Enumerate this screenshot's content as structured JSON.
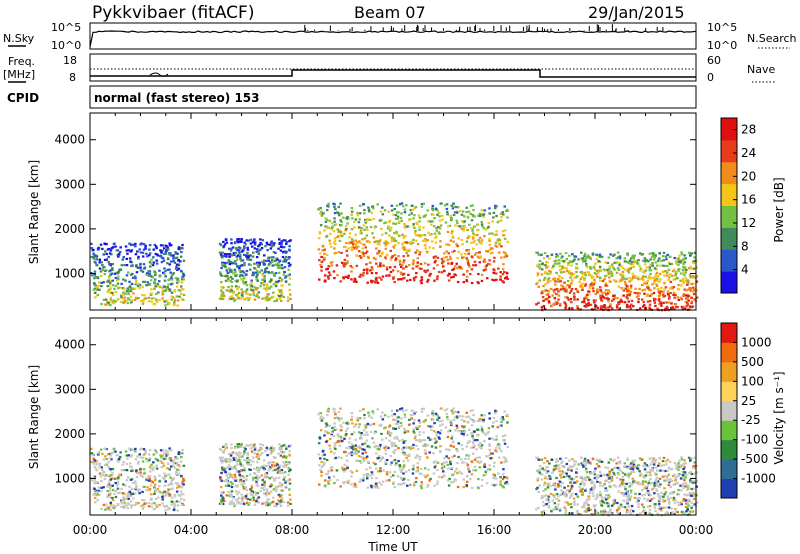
{
  "header": {
    "station": "Pykkvibaer (fitACF)",
    "beam": "Beam 07",
    "date": "29/Jan/2015"
  },
  "labels": {
    "nsky": "N.Sky",
    "nsearch": "N.Search",
    "freq_top": "Freq.",
    "freq_unit": "[MHz]",
    "nave": "Nave",
    "cpid": "CPID",
    "cpid_value": "normal (fast stereo) 153",
    "noise_ticks": [
      "10^5",
      "10^0"
    ],
    "freq_ticks": [
      "18",
      "8"
    ],
    "nave_ticks": [
      "60",
      "0"
    ]
  },
  "chart_data": [
    {
      "type": "heatmap",
      "name": "power",
      "title": "",
      "xlabel": "",
      "ylabel": "Slant Range [km]",
      "x_ticks": [
        "00:00",
        "04:00",
        "08:00",
        "12:00",
        "16:00",
        "20:00",
        "00:00"
      ],
      "y_ticks": [
        "1000",
        "2000",
        "3000",
        "4000"
      ],
      "xlim": [
        0,
        24
      ],
      "ylim": [
        180,
        4600
      ],
      "colorbar": {
        "label": "Power [dB]",
        "ticks": [
          "4",
          "8",
          "12",
          "16",
          "20",
          "24",
          "28"
        ],
        "range": [
          0,
          30
        ],
        "colors": [
          "#1a10e8",
          "#2a58c8",
          "#3f8c5a",
          "#74c043",
          "#f5c51a",
          "#f08d1a",
          "#e63c1a",
          "#e01010"
        ]
      },
      "regions": [
        {
          "t0": 0.0,
          "t1": 3.7,
          "r0": 300,
          "r1": 1700,
          "level": "mixed"
        },
        {
          "t0": 5.1,
          "t1": 7.9,
          "r0": 400,
          "r1": 1800,
          "level": "mixed"
        },
        {
          "t0": 9.0,
          "t1": 16.5,
          "r0": 800,
          "r1": 2600,
          "level": "strong"
        },
        {
          "t0": 17.6,
          "t1": 24.0,
          "r0": 200,
          "r1": 1500,
          "level": "strong"
        }
      ]
    },
    {
      "type": "heatmap",
      "name": "velocity",
      "title": "",
      "xlabel": "Time UT",
      "ylabel": "Slant Range [km]",
      "x_ticks": [
        "00:00",
        "04:00",
        "08:00",
        "12:00",
        "16:00",
        "20:00",
        "00:00"
      ],
      "y_ticks": [
        "1000",
        "2000",
        "3000",
        "4000"
      ],
      "xlim": [
        0,
        24
      ],
      "ylim": [
        180,
        4600
      ],
      "colorbar": {
        "label": "Velocity [m s⁻¹]",
        "ticks": [
          "1000",
          "500",
          "100",
          "25",
          "-25",
          "-100",
          "-500",
          "-1000"
        ],
        "colors": [
          "#1f3fb0",
          "#2f6e94",
          "#2f8a3c",
          "#6ac43b",
          "#c8c8c4",
          "#ffd35a",
          "#f0a020",
          "#f06a10",
          "#e01a10"
        ]
      }
    }
  ]
}
